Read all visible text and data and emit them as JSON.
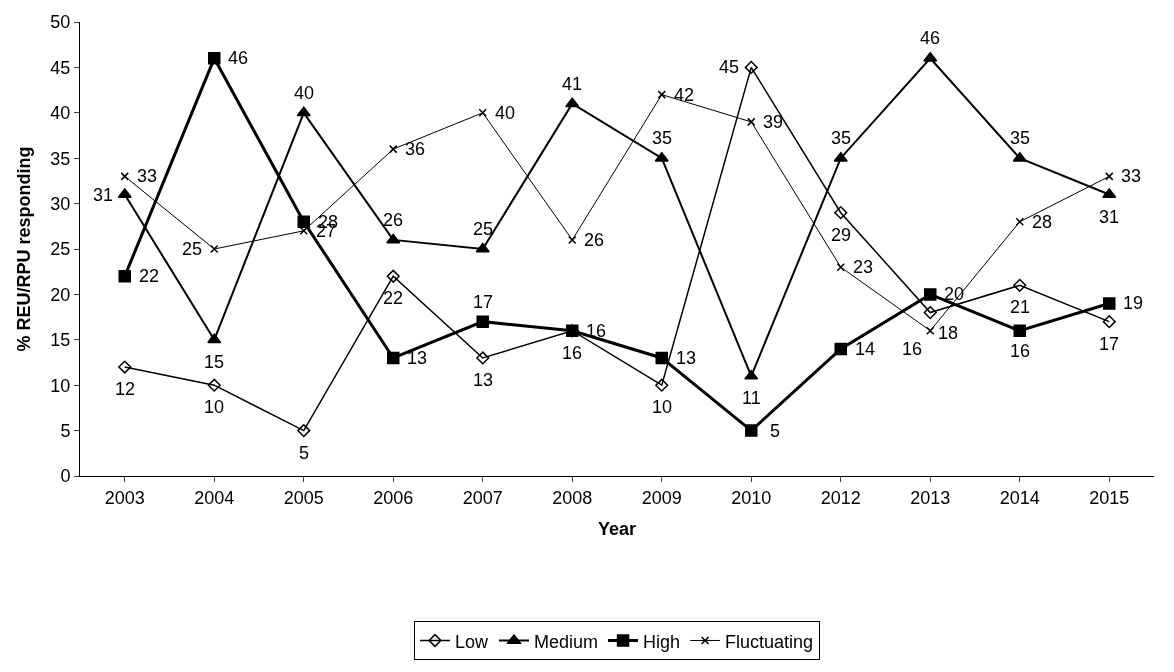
{
  "chart_data": {
    "type": "line",
    "xlabel": "Year",
    "ylabel": "% REU/RPU responding",
    "categories": [
      "2003",
      "2004",
      "2005",
      "2006",
      "2007",
      "2008",
      "2009",
      "2010",
      "2012",
      "2013",
      "2014",
      "2015"
    ],
    "series": [
      {
        "name": "Low",
        "color": "#000000",
        "marker": "diamond",
        "values": [
          12,
          10,
          5,
          22,
          13,
          16,
          10,
          45,
          29,
          18,
          21,
          17
        ]
      },
      {
        "name": "Medium",
        "color": "#000000",
        "marker": "triangle",
        "values": [
          31,
          15,
          40,
          26,
          25,
          41,
          35,
          11,
          35,
          46,
          35,
          31
        ]
      },
      {
        "name": "High",
        "color": "#000000",
        "marker": "square",
        "values": [
          22,
          46,
          28,
          13,
          17,
          16,
          13,
          5,
          14,
          20,
          16,
          19
        ]
      },
      {
        "name": "Fluctuating",
        "color": "#000000",
        "marker": "cross",
        "values": [
          33,
          25,
          27,
          36,
          40,
          26,
          42,
          39,
          23,
          16,
          28,
          33
        ]
      }
    ],
    "ylim": [
      0,
      50
    ],
    "yticks": [
      0,
      5,
      10,
      15,
      20,
      25,
      30,
      35,
      40,
      45,
      50
    ],
    "grid": false,
    "legend": "bottom",
    "data_labels": true,
    "line_style": "solid"
  }
}
